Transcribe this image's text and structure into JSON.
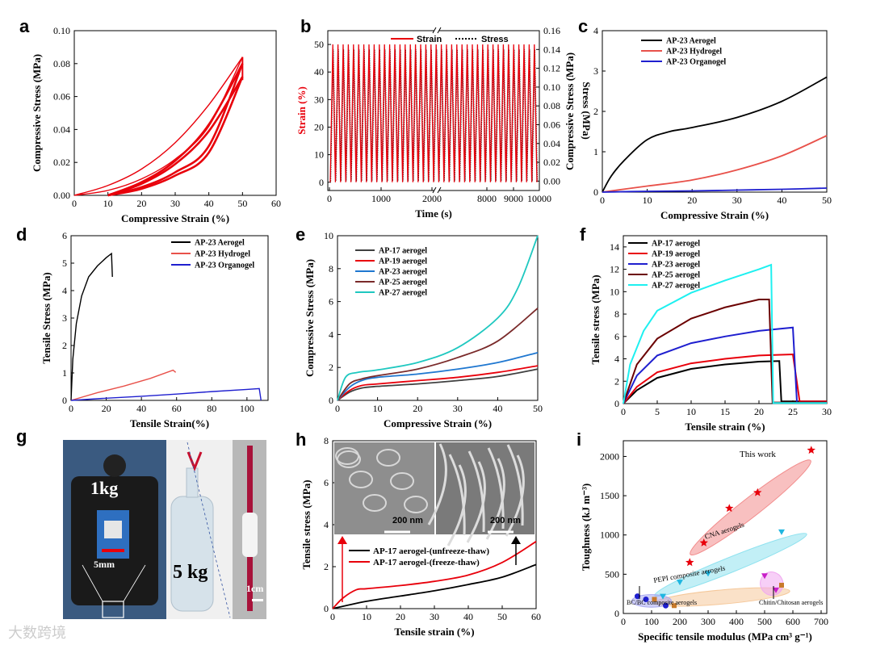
{
  "panels": [
    "a",
    "b",
    "c",
    "d",
    "e",
    "f",
    "g",
    "h",
    "i"
  ],
  "watermark": "大数跨境",
  "chart_data": [
    {
      "id": "a",
      "type": "line",
      "xlabel": "Compressive Strain (%)",
      "ylabel": "Compressive Stress (MPa)",
      "xlim": [
        0,
        60
      ],
      "ylim": [
        0,
        0.1
      ],
      "xticks": [
        "0",
        "10",
        "20",
        "30",
        "40",
        "50",
        "60"
      ],
      "yticks": [
        "0.00",
        "0.02",
        "0.04",
        "0.06",
        "0.08",
        "0.10"
      ],
      "color": "#e8000b",
      "series": [
        {
          "x": [
            0,
            10,
            20,
            30,
            40,
            50
          ],
          "y": [
            0,
            0.006,
            0.016,
            0.032,
            0.055,
            0.084
          ]
        },
        {
          "x": [
            0,
            10,
            20,
            30,
            40,
            50
          ],
          "y": [
            0,
            0.003,
            0.01,
            0.022,
            0.042,
            0.084
          ]
        },
        {
          "x": [
            10,
            20,
            30,
            40,
            50
          ],
          "y": [
            0,
            0.008,
            0.021,
            0.043,
            0.08
          ]
        },
        {
          "x": [
            10,
            20,
            30,
            40,
            50
          ],
          "y": [
            0,
            0.005,
            0.014,
            0.03,
            0.08
          ]
        },
        {
          "x": [
            10,
            20,
            30,
            40,
            50
          ],
          "y": [
            0,
            0.007,
            0.019,
            0.039,
            0.072
          ]
        },
        {
          "x": [
            10,
            20,
            30,
            40,
            50
          ],
          "y": [
            0,
            0.004,
            0.012,
            0.026,
            0.072
          ]
        }
      ]
    },
    {
      "id": "b",
      "type": "line",
      "xlabel": "Time (s)",
      "ylabel": "Strain (%)",
      "y2label": "Stress (MPa)",
      "ylim": [
        -3,
        55
      ],
      "y2lim": [
        -0.01,
        0.16
      ],
      "xticks": [
        "0",
        "1000",
        "2000",
        "8000",
        "9000",
        "10000"
      ],
      "yticks": [
        "0",
        "10",
        "20",
        "30",
        "40",
        "50"
      ],
      "y2ticks": [
        "0.00",
        "0.02",
        "0.04",
        "0.06",
        "0.08",
        "0.10",
        "0.12",
        "0.14",
        "0.16"
      ],
      "legend": [
        "Strain",
        "Stress"
      ],
      "cycles": 40,
      "strain_range": [
        0,
        50
      ],
      "stress_range": [
        0,
        0.14
      ],
      "colors": {
        "strain": "#e8000b",
        "stress": "#000000"
      }
    },
    {
      "id": "c",
      "type": "line",
      "xlabel": "Compressive Strain (%)",
      "ylabel": "Compressive Stress (MPa)",
      "xlim": [
        0,
        50
      ],
      "ylim": [
        0,
        4
      ],
      "xticks": [
        "0",
        "10",
        "20",
        "30",
        "40",
        "50"
      ],
      "yticks": [
        "0",
        "1",
        "2",
        "3",
        "4"
      ],
      "series": [
        {
          "name": "AP-23 Aerogel",
          "color": "#000000",
          "x": [
            0,
            2,
            5,
            10,
            15,
            20,
            30,
            40,
            50
          ],
          "y": [
            0,
            0.4,
            0.8,
            1.3,
            1.5,
            1.6,
            1.85,
            2.25,
            2.85
          ]
        },
        {
          "name": "AP-23 Hydrogel",
          "color": "#e8514a",
          "x": [
            0,
            10,
            20,
            30,
            40,
            50
          ],
          "y": [
            0,
            0.15,
            0.3,
            0.55,
            0.9,
            1.4
          ]
        },
        {
          "name": "AP-23 Organogel",
          "color": "#1f1fcf",
          "x": [
            0,
            10,
            20,
            30,
            40,
            50
          ],
          "y": [
            0,
            0.02,
            0.03,
            0.05,
            0.07,
            0.1
          ]
        }
      ]
    },
    {
      "id": "d",
      "type": "line",
      "xlabel": "Tensile Strain(%)",
      "ylabel": "Tensile Stress (MPa)",
      "xlim": [
        0,
        112
      ],
      "ylim": [
        0,
        6
      ],
      "xticks": [
        "0",
        "20",
        "40",
        "60",
        "80",
        "100"
      ],
      "yticks": [
        "0",
        "1",
        "2",
        "3",
        "4",
        "5",
        "6"
      ],
      "series": [
        {
          "name": "AP-23 Aerogel",
          "color": "#000000",
          "x": [
            0,
            1,
            3,
            6,
            10,
            15,
            20,
            23,
            23.5
          ],
          "y": [
            0,
            1.5,
            2.8,
            3.8,
            4.5,
            4.9,
            5.2,
            5.35,
            4.5
          ]
        },
        {
          "name": "AP-23 Hydrogel",
          "color": "#e8514a",
          "x": [
            0,
            15,
            30,
            45,
            58,
            59.5
          ],
          "y": [
            0,
            0.28,
            0.52,
            0.8,
            1.1,
            1.02
          ]
        },
        {
          "name": "AP-23 Organogel",
          "color": "#1f1fcf",
          "x": [
            0,
            20,
            40,
            60,
            80,
            100,
            107,
            108
          ],
          "y": [
            0,
            0.08,
            0.15,
            0.23,
            0.32,
            0.4,
            0.43,
            0.0
          ]
        }
      ]
    },
    {
      "id": "e",
      "type": "line",
      "xlabel": "Compressive Strain (%)",
      "ylabel": "Compressive Stress (MPa)",
      "xlim": [
        0,
        50
      ],
      "ylim": [
        0,
        10
      ],
      "xticks": [
        "0",
        "10",
        "20",
        "30",
        "40",
        "50"
      ],
      "yticks": [
        "0",
        "2",
        "4",
        "6",
        "8",
        "10"
      ],
      "series": [
        {
          "name": "AP-17 aerogel",
          "color": "#404040",
          "x": [
            0,
            3,
            6,
            10,
            20,
            30,
            40,
            50
          ],
          "y": [
            0,
            0.5,
            0.75,
            0.85,
            1.0,
            1.2,
            1.45,
            1.9
          ]
        },
        {
          "name": "AP-19 aerogel",
          "color": "#e8000b",
          "x": [
            0,
            3,
            6,
            10,
            20,
            30,
            40,
            50
          ],
          "y": [
            0,
            0.6,
            0.9,
            1.0,
            1.2,
            1.4,
            1.7,
            2.1
          ]
        },
        {
          "name": "AP-23 aerogel",
          "color": "#1f77d0",
          "x": [
            0,
            3,
            6,
            10,
            20,
            30,
            40,
            50
          ],
          "y": [
            0,
            0.8,
            1.2,
            1.4,
            1.6,
            1.9,
            2.3,
            2.9
          ]
        },
        {
          "name": "AP-25 aerogel",
          "color": "#7a2a2a",
          "x": [
            0,
            3,
            6,
            10,
            20,
            30,
            40,
            50
          ],
          "y": [
            0,
            1.0,
            1.3,
            1.5,
            1.9,
            2.6,
            3.6,
            5.6
          ]
        },
        {
          "name": "AP-27 aerogel",
          "color": "#1fc8c0",
          "x": [
            0,
            2,
            5,
            10,
            20,
            30,
            40,
            45,
            50
          ],
          "y": [
            0,
            1.4,
            1.7,
            1.85,
            2.3,
            3.2,
            5.0,
            6.8,
            10
          ]
        }
      ]
    },
    {
      "id": "f",
      "type": "line",
      "xlabel": "Tensile strain (%)",
      "ylabel": "Tensile stress (MPa)",
      "xlim": [
        0,
        30
      ],
      "ylim": [
        0,
        15
      ],
      "xticks": [
        "0",
        "5",
        "10",
        "15",
        "20",
        "25",
        "30"
      ],
      "yticks": [
        "0",
        "2",
        "4",
        "6",
        "8",
        "10",
        "12",
        "14"
      ],
      "series": [
        {
          "name": "AP-17 aerogel",
          "color": "#000000",
          "x": [
            0,
            2,
            5,
            10,
            15,
            20,
            23,
            23.3,
            30
          ],
          "y": [
            0,
            1.2,
            2.3,
            3.1,
            3.5,
            3.75,
            3.8,
            0.2,
            0.2
          ]
        },
        {
          "name": "AP-19 aerogel",
          "color": "#e8000b",
          "x": [
            0,
            2,
            5,
            10,
            15,
            20,
            25,
            26,
            30
          ],
          "y": [
            0,
            1.5,
            2.8,
            3.6,
            4.0,
            4.3,
            4.4,
            0.2,
            0.2
          ]
        },
        {
          "name": "AP-23 aerogel",
          "color": "#1f1fcf",
          "x": [
            0,
            2,
            5,
            10,
            15,
            20,
            25,
            25.6,
            30
          ],
          "y": [
            0,
            2.5,
            4.3,
            5.4,
            6.0,
            6.5,
            6.8,
            0.1,
            0.1
          ]
        },
        {
          "name": "AP-25 aerogel",
          "color": "#6b0000",
          "x": [
            0,
            2,
            5,
            10,
            15,
            20,
            21.5,
            22,
            30
          ],
          "y": [
            0,
            3.5,
            5.8,
            7.6,
            8.6,
            9.3,
            9.3,
            0.1,
            0.1
          ]
        },
        {
          "name": "AP-27 aerogel",
          "color": "#1ef0f0",
          "x": [
            0,
            1,
            3,
            5,
            10,
            15,
            20,
            21.8,
            22.1,
            30
          ],
          "y": [
            0,
            3.5,
            6.5,
            8.3,
            9.9,
            11.0,
            12.0,
            12.4,
            0.05,
            0.05
          ]
        }
      ]
    },
    {
      "id": "h",
      "type": "line",
      "xlabel": "Tensile strain (%)",
      "ylabel": "Tensile stress (MPa)",
      "xlim": [
        0,
        60
      ],
      "ylim": [
        0,
        8
      ],
      "xticks": [
        "0",
        "10",
        "20",
        "30",
        "40",
        "50",
        "60"
      ],
      "yticks": [
        "0",
        "2",
        "4",
        "6",
        "8"
      ],
      "scale_bars": [
        "200 nm",
        "200 nm"
      ],
      "series": [
        {
          "name": "AP-17 aerogel-(unfreeze-thaw)",
          "color": "#000000",
          "x": [
            0,
            10,
            20,
            30,
            40,
            50,
            60
          ],
          "y": [
            0,
            0.35,
            0.6,
            0.85,
            1.15,
            1.5,
            2.1
          ]
        },
        {
          "name": "AP-17 aerogel-(freeze-thaw)",
          "color": "#e8000b",
          "x": [
            0,
            3,
            7,
            10,
            20,
            30,
            40,
            50,
            60
          ],
          "y": [
            0,
            0.5,
            0.9,
            0.95,
            1.1,
            1.3,
            1.6,
            2.2,
            3.2
          ]
        }
      ]
    },
    {
      "id": "i",
      "type": "scatter",
      "xlabel": "Specific tensile modulus (MPa cm³ g⁻¹)",
      "ylabel": "Toughness (kJ m⁻³)",
      "xlim": [
        0,
        720
      ],
      "ylim": [
        0,
        2200
      ],
      "xticks": [
        "0",
        "100",
        "200",
        "300",
        "400",
        "500",
        "600",
        "700"
      ],
      "yticks": [
        "0",
        "500",
        "1000",
        "1500",
        "2000"
      ],
      "groups": [
        {
          "name": "This work",
          "marker": "star",
          "color": "#e8000b",
          "x": [
            235,
            285,
            375,
            475,
            665
          ],
          "y": [
            650,
            900,
            1340,
            1540,
            2080
          ]
        },
        {
          "name": "CNA aerogels",
          "marker": "triangle",
          "color": "#1fb6e0",
          "x": [
            140,
            200,
            300,
            560
          ],
          "y": [
            220,
            400,
            510,
            1040
          ]
        },
        {
          "name": "PEPI composite aerogels",
          "marker": "square",
          "color": "#c87a2a",
          "x": [
            110,
            180,
            560
          ],
          "y": [
            180,
            100,
            360
          ]
        },
        {
          "name": "BC/BC composite aerogels",
          "marker": "circle",
          "color": "#1f1fcf",
          "x": [
            50,
            80,
            150
          ],
          "y": [
            220,
            180,
            100
          ]
        },
        {
          "name": "Chitin/Chitosan aerogels",
          "marker": "triangle",
          "color": "#c81fc8",
          "x": [
            500,
            540
          ],
          "y": [
            480,
            300
          ]
        }
      ]
    }
  ],
  "photo": {
    "labels": [
      "1kg",
      "5mm",
      "5 kg",
      "1cm"
    ]
  }
}
